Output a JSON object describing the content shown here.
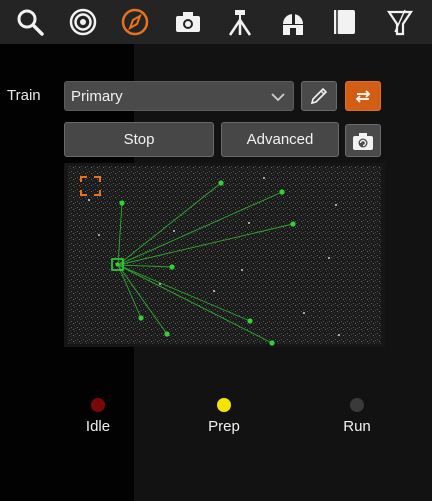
{
  "toolbar": {
    "icons": [
      "search-icon",
      "target-icon",
      "compass-icon",
      "camera-icon",
      "tripod-icon",
      "observatory-icon",
      "notebook-icon",
      "filter-icon"
    ],
    "active_color": "#e8721e",
    "icon_color": "#f2f2f2"
  },
  "train": {
    "label": "Train",
    "selected": "Primary"
  },
  "actions": {
    "stop_label": "Stop",
    "advanced_label": "Advanced"
  },
  "status": [
    {
      "label": "Idle",
      "color": "#7a0808"
    },
    {
      "label": "Prep",
      "color": "#f5e400"
    },
    {
      "label": "Run",
      "color": "#3a3a3a"
    }
  ],
  "colors": {
    "accent": "#d25d14",
    "star_marker": "#2ecc2e"
  }
}
